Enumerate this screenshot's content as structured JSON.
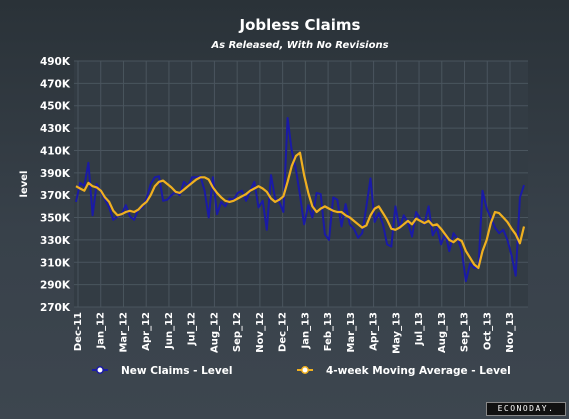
{
  "chart_data": {
    "type": "line",
    "title": "Jobless Claims",
    "subtitle": "As Released, With No Revisions",
    "ylabel": "level",
    "ylim": [
      270000,
      490000
    ],
    "ytick_labels": [
      "490K",
      "470K",
      "450K",
      "430K",
      "410K",
      "390K",
      "370K",
      "350K",
      "330K",
      "310K",
      "290K",
      "270K"
    ],
    "x_labels": [
      "Dec-11",
      "Jan_12",
      "Mar_12",
      "Apr_12",
      "Jun_12",
      "Jul_12",
      "Aug_12",
      "Sep_12",
      "Nov_12",
      "Dec_12",
      "Jan_13",
      "Feb_13",
      "Mar_13",
      "Apr_13",
      "May_13",
      "Jul_13",
      "Aug_13",
      "Sep_13",
      "Oct_13",
      "Nov_13"
    ],
    "grid": true,
    "legend_position": "bottom",
    "colors": {
      "plot_bg": "#333c44",
      "grid": "#4a555e",
      "claims": "#1a1aa6",
      "average": "#f0b020"
    },
    "series": [
      {
        "name": "New Claims - Level",
        "values": [
          364000,
          381000,
          378000,
          399000,
          352000,
          380000,
          373000,
          366000,
          359000,
          348000,
          351000,
          353000,
          361000,
          351000,
          348000,
          357000,
          359000,
          367000,
          380000,
          386000,
          387000,
          365000,
          366000,
          370000,
          373000,
          370000,
          382000,
          378000,
          386000,
          386000,
          387000,
          374000,
          350000,
          386000,
          353000,
          364000,
          360000,
          367000,
          366000,
          372000,
          374000,
          365000,
          374000,
          382000,
          359000,
          365000,
          339000,
          388000,
          367000,
          364000,
          355000,
          439000,
          410000,
          393000,
          370000,
          344000,
          361000,
          350000,
          372000,
          371000,
          335000,
          330000,
          368000,
          366000,
          342000,
          362000,
          344000,
          340000,
          332000,
          336000,
          360000,
          385000,
          346000,
          354000,
          344000,
          326000,
          324000,
          360000,
          340000,
          352000,
          346000,
          333000,
          355000,
          349000,
          344000,
          360000,
          334000,
          341000,
          326000,
          336000,
          320000,
          336000,
          331000,
          320000,
          293000,
          309000,
          305000,
          305000,
          374000,
          358000,
          350000,
          341000,
          336000,
          339000,
          330000,
          316000,
          298000,
          368000,
          379000
        ],
        "marker": "circle"
      },
      {
        "name": "4-week Moving Average - Level",
        "values": [
          378000,
          376000,
          374000,
          381000,
          378000,
          377000,
          374000,
          368000,
          364000,
          356000,
          352000,
          353000,
          355000,
          356000,
          355000,
          357000,
          361000,
          364000,
          370000,
          378000,
          382000,
          383000,
          380000,
          377000,
          373000,
          372000,
          375000,
          378000,
          381000,
          384000,
          386000,
          386000,
          384000,
          377000,
          372000,
          368000,
          365000,
          364000,
          365000,
          367000,
          369000,
          371000,
          374000,
          376000,
          378000,
          376000,
          373000,
          367000,
          364000,
          366000,
          369000,
          382000,
          396000,
          405000,
          408000,
          388000,
          372000,
          360000,
          355000,
          358000,
          360000,
          358000,
          356000,
          355000,
          355000,
          352000,
          350000,
          347000,
          344000,
          341000,
          343000,
          352000,
          358000,
          360000,
          354000,
          348000,
          340000,
          339000,
          341000,
          344000,
          347000,
          344000,
          349000,
          347000,
          345000,
          347000,
          343000,
          344000,
          340000,
          335000,
          330000,
          328000,
          331000,
          329000,
          320000,
          314000,
          308000,
          305000,
          320000,
          330000,
          345000,
          355000,
          354000,
          350000,
          346000,
          340000,
          335000,
          327000,
          342000
        ],
        "marker": "circle"
      }
    ]
  },
  "branding": {
    "logo_text": "ECONODAY."
  }
}
